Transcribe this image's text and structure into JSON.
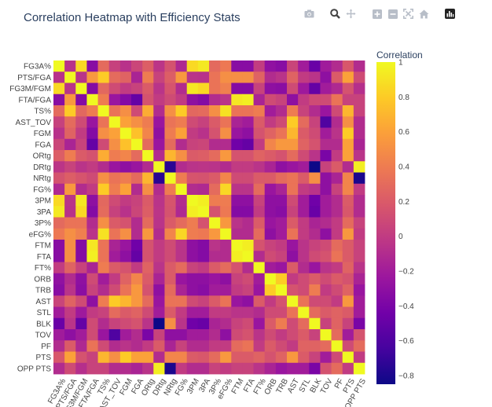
{
  "modebar": {
    "icons": [
      "camera-icon",
      "zoom-icon",
      "pan-icon",
      "zoom-in-icon",
      "zoom-out-icon",
      "autoscale-icon",
      "reset-axes-icon",
      "plotly-logo-icon"
    ]
  },
  "colorbar": {
    "title": "Correlation",
    "range": [
      -0.85,
      1.0
    ],
    "ticks": [
      1,
      0.8,
      0.6,
      0.4,
      0.2,
      0,
      -0.2,
      -0.4,
      -0.6,
      -0.8
    ],
    "tick_labels": [
      "1",
      "0.8",
      "0.6",
      "0.4",
      "0.2",
      "0",
      "−0.2",
      "−0.4",
      "−0.6",
      "−0.8"
    ],
    "colorscale": [
      "#0d0887",
      "#46039f",
      "#7201a8",
      "#9c179e",
      "#bd3786",
      "#d8576b",
      "#ed7953",
      "#fb9f3a",
      "#fdca26",
      "#f0f921"
    ]
  },
  "chart_data": {
    "type": "heatmap",
    "title": "Correlation Heatmap with Efficiency Stats",
    "labels": [
      "FG3A%",
      "PTS/FGA",
      "FG3M/FGM",
      "FTA/FGA",
      "TS%",
      "AST_TOV",
      "FGM",
      "FGA",
      "ORtg",
      "DRtg",
      "NRtg",
      "FG%",
      "3PM",
      "3PA",
      "3P%",
      "eFG%",
      "FTM",
      "FTA",
      "FT%",
      "ORB",
      "TRB",
      "AST",
      "STL",
      "BLK",
      "TOV",
      "PF",
      "PTS",
      "OPP PTS"
    ],
    "z": [
      [
        1,
        -0.06,
        0.86,
        -0.33,
        0.3,
        0.04,
        -0.06,
        0.07,
        0.22,
        -0.04,
        0.15,
        -0.12,
        0.86,
        0.93,
        0.29,
        0.38,
        -0.33,
        -0.33,
        0.01,
        -0.29,
        -0.33,
        0.06,
        -0.2,
        -0.48,
        -0.21,
        -0.1,
        0.18,
        -0.1
      ],
      [
        -0.06,
        1,
        -0.05,
        0.55,
        0.8,
        0.3,
        0.25,
        -0.15,
        0.4,
        0.05,
        0.22,
        0.55,
        -0.05,
        -0.06,
        0.35,
        0.5,
        0.5,
        0.5,
        0.25,
        -0.1,
        -0.05,
        0.25,
        0.0,
        -0.05,
        -0.3,
        0.2,
        0.6,
        0.1
      ],
      [
        0.86,
        -0.05,
        1,
        -0.35,
        0.28,
        0.1,
        0.0,
        0.05,
        0.2,
        -0.05,
        0.16,
        -0.1,
        0.92,
        0.86,
        0.35,
        0.42,
        -0.35,
        -0.35,
        0.05,
        -0.3,
        -0.32,
        0.1,
        -0.22,
        -0.5,
        -0.2,
        -0.12,
        0.15,
        -0.08
      ],
      [
        -0.33,
        0.55,
        -0.35,
        1,
        0.4,
        -0.25,
        -0.35,
        -0.5,
        0.15,
        0.0,
        0.1,
        0.0,
        -0.3,
        -0.35,
        -0.1,
        -0.05,
        0.92,
        0.95,
        -0.15,
        0.1,
        0.05,
        -0.3,
        0.0,
        0.1,
        0.1,
        0.35,
        0.05,
        0.05
      ],
      [
        0.3,
        0.8,
        0.28,
        0.4,
        1,
        0.35,
        0.5,
        0.1,
        0.65,
        -0.1,
        0.5,
        0.8,
        0.28,
        0.3,
        0.5,
        0.9,
        0.35,
        0.35,
        0.4,
        -0.2,
        -0.1,
        0.4,
        0.05,
        -0.1,
        -0.25,
        0.1,
        0.7,
        0.05
      ],
      [
        0.04,
        0.3,
        0.1,
        -0.25,
        0.35,
        1,
        0.6,
        0.5,
        0.4,
        -0.25,
        0.35,
        0.4,
        0.1,
        0.04,
        0.2,
        0.35,
        -0.15,
        -0.2,
        0.2,
        0.0,
        0.1,
        0.8,
        0.3,
        0.05,
        -0.6,
        -0.1,
        0.5,
        -0.1
      ],
      [
        -0.06,
        0.25,
        0.0,
        -0.35,
        0.5,
        0.6,
        1,
        0.75,
        0.45,
        -0.3,
        0.4,
        0.6,
        0.0,
        -0.06,
        0.15,
        0.5,
        -0.25,
        -0.3,
        0.15,
        0.25,
        0.35,
        0.7,
        0.2,
        0.1,
        -0.2,
        -0.05,
        0.8,
        -0.1
      ],
      [
        0.07,
        -0.15,
        0.05,
        -0.5,
        0.1,
        0.5,
        0.75,
        1,
        0.3,
        -0.25,
        0.3,
        -0.1,
        0.05,
        0.07,
        -0.1,
        -0.1,
        -0.45,
        -0.5,
        0.0,
        0.45,
        0.55,
        0.55,
        0.25,
        0.15,
        -0.1,
        -0.1,
        0.6,
        -0.15
      ],
      [
        0.22,
        0.4,
        0.2,
        0.15,
        0.65,
        0.4,
        0.45,
        0.3,
        1,
        -0.1,
        0.7,
        0.5,
        0.2,
        0.22,
        0.3,
        0.55,
        0.15,
        0.15,
        0.25,
        0.2,
        0.15,
        0.3,
        0.1,
        -0.05,
        -0.4,
        0.0,
        0.6,
        -0.05
      ],
      [
        -0.04,
        0.05,
        -0.05,
        0.0,
        -0.1,
        -0.25,
        -0.3,
        -0.25,
        -0.1,
        1,
        -0.75,
        -0.1,
        -0.05,
        -0.04,
        -0.05,
        -0.1,
        0.0,
        0.0,
        -0.05,
        -0.15,
        -0.3,
        -0.25,
        -0.2,
        -0.85,
        0.05,
        0.2,
        -0.1,
        0.95
      ],
      [
        0.15,
        0.22,
        0.16,
        0.1,
        0.5,
        0.35,
        0.4,
        0.3,
        0.7,
        -0.75,
        1,
        0.4,
        0.16,
        0.15,
        0.2,
        0.45,
        0.1,
        0.1,
        0.2,
        0.2,
        0.3,
        0.35,
        0.2,
        0.5,
        -0.3,
        -0.15,
        0.45,
        -0.8
      ],
      [
        -0.12,
        0.55,
        -0.1,
        0.0,
        0.8,
        0.4,
        0.6,
        -0.1,
        0.5,
        -0.1,
        0.4,
        1,
        -0.1,
        -0.12,
        0.3,
        0.85,
        -0.05,
        -0.05,
        0.3,
        -0.25,
        -0.15,
        0.35,
        0.0,
        -0.05,
        -0.3,
        0.05,
        0.45,
        0.0
      ],
      [
        0.86,
        -0.05,
        0.92,
        -0.3,
        0.28,
        0.1,
        0.0,
        0.05,
        0.2,
        -0.05,
        0.16,
        -0.1,
        1,
        0.95,
        0.4,
        0.4,
        -0.3,
        -0.3,
        0.05,
        -0.3,
        -0.3,
        0.1,
        -0.2,
        -0.45,
        -0.2,
        -0.1,
        0.2,
        -0.1
      ],
      [
        0.93,
        -0.06,
        0.86,
        -0.35,
        0.3,
        0.04,
        -0.06,
        0.07,
        0.22,
        -0.04,
        0.15,
        -0.12,
        0.95,
        1,
        0.15,
        0.38,
        -0.35,
        -0.35,
        0.0,
        -0.3,
        -0.33,
        0.05,
        -0.2,
        -0.48,
        -0.2,
        -0.1,
        0.18,
        -0.1
      ],
      [
        0.29,
        0.35,
        0.35,
        -0.1,
        0.5,
        0.2,
        0.15,
        -0.1,
        0.3,
        -0.05,
        0.2,
        0.3,
        0.4,
        0.15,
        1,
        0.55,
        -0.05,
        -0.1,
        0.2,
        -0.25,
        -0.2,
        0.2,
        0.0,
        -0.15,
        -0.1,
        0.0,
        0.3,
        0.05
      ],
      [
        0.38,
        0.5,
        0.42,
        -0.05,
        0.9,
        0.35,
        0.5,
        -0.1,
        0.55,
        -0.1,
        0.45,
        0.85,
        0.4,
        0.38,
        0.55,
        1,
        -0.1,
        -0.1,
        0.3,
        -0.3,
        -0.2,
        0.35,
        0.0,
        -0.1,
        -0.3,
        0.0,
        0.55,
        0.0
      ],
      [
        -0.33,
        0.5,
        -0.35,
        0.92,
        0.35,
        -0.15,
        -0.25,
        -0.45,
        0.15,
        0.0,
        0.1,
        -0.05,
        -0.3,
        -0.35,
        -0.05,
        -0.1,
        1,
        0.95,
        0.15,
        0.05,
        0.0,
        -0.25,
        -0.05,
        0.05,
        0.1,
        0.3,
        0.2,
        0.05
      ],
      [
        -0.33,
        0.5,
        -0.35,
        0.95,
        0.35,
        -0.2,
        -0.3,
        -0.5,
        0.15,
        0.0,
        0.1,
        -0.05,
        -0.3,
        -0.35,
        -0.1,
        -0.1,
        0.95,
        1,
        -0.1,
        0.1,
        0.05,
        -0.3,
        -0.05,
        0.1,
        0.15,
        0.35,
        0.2,
        0.05
      ],
      [
        0.01,
        0.25,
        0.05,
        -0.15,
        0.4,
        0.2,
        0.15,
        0.0,
        0.25,
        -0.05,
        0.2,
        0.3,
        0.05,
        0.0,
        0.2,
        0.3,
        0.15,
        -0.1,
        1,
        -0.2,
        -0.25,
        0.2,
        -0.1,
        -0.25,
        -0.05,
        0.0,
        0.25,
        -0.05
      ],
      [
        -0.29,
        -0.1,
        -0.3,
        0.1,
        -0.2,
        0.0,
        0.25,
        0.45,
        0.2,
        -0.15,
        0.2,
        -0.25,
        -0.3,
        -0.3,
        -0.25,
        -0.3,
        0.05,
        0.1,
        -0.2,
        1,
        0.8,
        0.0,
        0.1,
        0.2,
        0.1,
        0.2,
        0.15,
        -0.15
      ],
      [
        -0.33,
        -0.05,
        -0.32,
        0.05,
        -0.1,
        0.1,
        0.35,
        0.55,
        0.15,
        -0.3,
        0.3,
        -0.15,
        -0.3,
        -0.33,
        -0.2,
        -0.2,
        0.0,
        0.05,
        -0.25,
        0.8,
        1,
        0.15,
        0.1,
        0.4,
        0.0,
        0.1,
        0.25,
        -0.25
      ],
      [
        0.06,
        0.25,
        0.1,
        -0.3,
        0.4,
        0.8,
        0.7,
        0.55,
        0.3,
        -0.25,
        0.35,
        0.35,
        0.1,
        0.05,
        0.2,
        0.35,
        -0.25,
        -0.3,
        0.2,
        0.0,
        0.15,
        1,
        0.35,
        0.1,
        0.1,
        0.0,
        0.55,
        -0.2
      ],
      [
        -0.2,
        0.0,
        -0.22,
        0.0,
        0.05,
        0.3,
        0.2,
        0.25,
        0.1,
        -0.2,
        0.2,
        0.0,
        -0.2,
        -0.2,
        0.0,
        0.0,
        -0.05,
        -0.05,
        -0.1,
        0.1,
        0.1,
        0.35,
        1,
        0.3,
        0.2,
        0.25,
        0.2,
        -0.2
      ],
      [
        -0.48,
        -0.05,
        -0.5,
        0.1,
        -0.1,
        0.05,
        0.1,
        0.15,
        -0.05,
        -0.85,
        0.5,
        -0.05,
        -0.45,
        -0.48,
        -0.15,
        -0.1,
        0.05,
        0.1,
        -0.25,
        0.2,
        0.4,
        0.1,
        0.3,
        1,
        0.05,
        0.25,
        0.05,
        -0.4
      ],
      [
        -0.21,
        -0.3,
        -0.2,
        0.1,
        -0.25,
        -0.6,
        -0.2,
        -0.1,
        -0.4,
        0.05,
        -0.3,
        -0.3,
        -0.2,
        -0.2,
        -0.1,
        -0.3,
        0.1,
        0.15,
        -0.05,
        0.1,
        0.0,
        0.1,
        0.2,
        0.05,
        1,
        0.3,
        -0.2,
        0.15
      ],
      [
        -0.1,
        0.2,
        -0.12,
        0.35,
        0.1,
        -0.1,
        -0.05,
        -0.1,
        0.0,
        0.2,
        -0.15,
        0.05,
        -0.1,
        -0.1,
        0.0,
        0.0,
        0.3,
        0.35,
        0.0,
        0.2,
        0.1,
        0.0,
        0.25,
        0.25,
        0.3,
        1,
        0.1,
        0.3
      ],
      [
        0.18,
        0.6,
        0.15,
        0.05,
        0.7,
        0.5,
        0.8,
        0.6,
        0.6,
        -0.1,
        0.45,
        0.45,
        0.2,
        0.18,
        0.3,
        0.55,
        0.2,
        0.2,
        0.25,
        0.15,
        0.25,
        0.55,
        0.2,
        0.05,
        -0.2,
        0.1,
        1,
        0.0
      ],
      [
        -0.1,
        0.1,
        -0.08,
        0.05,
        0.05,
        -0.1,
        -0.1,
        -0.15,
        -0.05,
        0.95,
        -0.8,
        0.0,
        -0.1,
        -0.1,
        0.05,
        0.0,
        0.05,
        0.05,
        -0.05,
        -0.15,
        -0.25,
        -0.2,
        -0.2,
        -0.4,
        0.15,
        0.3,
        0.0,
        1
      ]
    ],
    "zmin": -0.85,
    "zmax": 1.0,
    "colorbar_title": "Correlation"
  }
}
